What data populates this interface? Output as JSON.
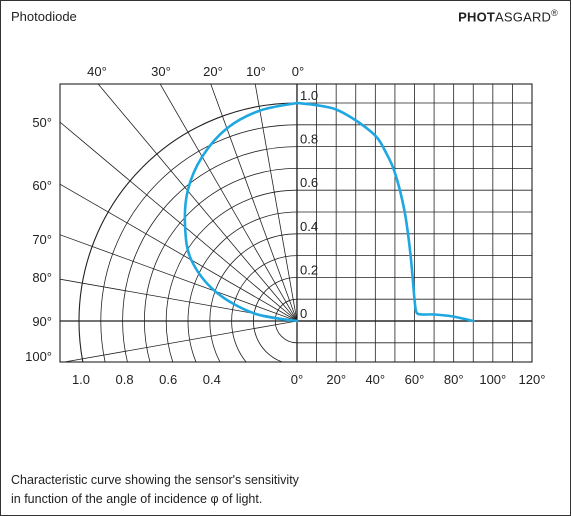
{
  "header": {
    "title": "Photodiode",
    "brand_bold": "PHOT",
    "brand_rest": "ASGARD",
    "brand_mark": "®"
  },
  "caption": {
    "line1": "Characteristic curve showing the sensor's sensitivity",
    "line2": "in function of the angle of incidence φ of light."
  },
  "chart_data": {
    "type": "line",
    "title": "",
    "xlabel": "",
    "ylabel": "",
    "curve_color": "#1ea7e1",
    "polar": {
      "angle_range_deg": [
        0,
        100
      ],
      "radius_range": [
        0,
        1.0
      ],
      "angle_tick_labels": [
        "0°",
        "10°",
        "20°",
        "30°",
        "40°",
        "50°",
        "60°",
        "70°",
        "80°",
        "90°",
        "100°"
      ],
      "radius_tick_labels": [
        "1.0",
        "0.8",
        "0.6",
        "0.4"
      ]
    },
    "cartesian": {
      "xlim": [
        0,
        120
      ],
      "ylim": [
        0,
        1.0
      ],
      "x_tick_labels": [
        "0°",
        "20°",
        "40°",
        "60°",
        "80°",
        "100°",
        "120°"
      ],
      "y_tick_labels": [
        "0",
        "0.2",
        "0.4",
        "0.6",
        "0.8",
        "1.0"
      ]
    },
    "series": [
      {
        "values_polar": [
          {
            "angle": 0,
            "r": 1.0
          },
          {
            "angle": 10,
            "r": 0.98
          },
          {
            "angle": 20,
            "r": 0.94
          },
          {
            "angle": 30,
            "r": 0.87
          },
          {
            "angle": 40,
            "r": 0.78
          },
          {
            "angle": 50,
            "r": 0.67
          },
          {
            "angle": 60,
            "r": 0.56
          },
          {
            "angle": 70,
            "r": 0.4
          },
          {
            "angle": 80,
            "r": 0.2
          },
          {
            "angle": 90,
            "r": 0.0
          }
        ],
        "values_cartesian": [
          {
            "x": 0,
            "y": 1.0
          },
          {
            "x": 10,
            "y": 0.99
          },
          {
            "x": 20,
            "y": 0.97
          },
          {
            "x": 30,
            "y": 0.92
          },
          {
            "x": 40,
            "y": 0.85
          },
          {
            "x": 45,
            "y": 0.78
          },
          {
            "x": 50,
            "y": 0.68
          },
          {
            "x": 55,
            "y": 0.5
          },
          {
            "x": 58,
            "y": 0.3
          },
          {
            "x": 60,
            "y": 0.1
          },
          {
            "x": 61,
            "y": 0.04
          },
          {
            "x": 64,
            "y": 0.03
          },
          {
            "x": 70,
            "y": 0.03
          },
          {
            "x": 80,
            "y": 0.02
          },
          {
            "x": 90,
            "y": 0.0
          }
        ]
      }
    ]
  }
}
